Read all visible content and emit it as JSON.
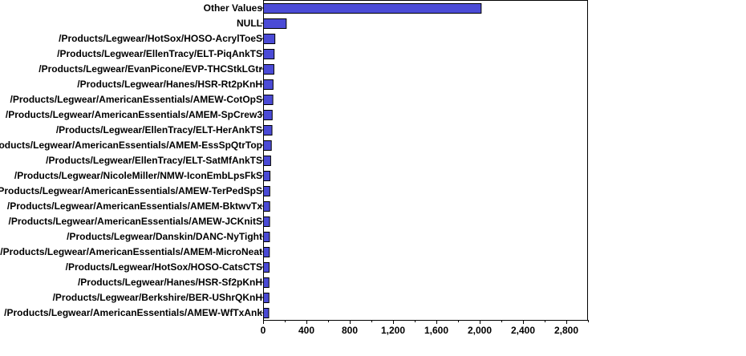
{
  "chart_data": {
    "type": "bar",
    "orientation": "horizontal",
    "categories": [
      "Other Values",
      "NULL",
      "/Products/Legwear/HotSox/HOSO-AcrylToeS",
      "/Products/Legwear/EllenTracy/ELT-PiqAnkTS",
      "/Products/Legwear/EvanPicone/EVP-THCStkLGtr",
      "/Products/Legwear/Hanes/HSR-Rt2pKnH",
      "/Products/Legwear/AmericanEssentials/AMEW-CotOpS",
      "/Products/Legwear/AmericanEssentials/AMEM-SpCrew3",
      "/Products/Legwear/EllenTracy/ELT-HerAnkTS",
      "/Products/Legwear/AmericanEssentials/AMEM-EssSpQtrTop",
      "/Products/Legwear/EllenTracy/ELT-SatMfAnkTS",
      "/Products/Legwear/NicoleMiller/NMW-IconEmbLpsFkS",
      "/Products/Legwear/AmericanEssentials/AMEW-TerPedSpS",
      "/Products/Legwear/AmericanEssentials/AMEM-BktwvTx",
      "/Products/Legwear/AmericanEssentials/AMEW-JCKnitS",
      "/Products/Legwear/Danskin/DANC-NyTight",
      "/Products/Legwear/AmericanEssentials/AMEM-MicroNeat",
      "/Products/Legwear/HotSox/HOSO-CatsCTS",
      "/Products/Legwear/Hanes/HSR-Sf2pKnH",
      "/Products/Legwear/Berkshire/BER-UShrQKnH",
      "/Products/Legwear/AmericanEssentials/AMEW-WfTxAnk"
    ],
    "values": [
      2010,
      210,
      105,
      98,
      96,
      88,
      86,
      80,
      78,
      72,
      66,
      60,
      58,
      57,
      56,
      55,
      54,
      52,
      50,
      50,
      48
    ],
    "xlim": [
      0,
      3000
    ],
    "xticks": [
      0,
      400,
      800,
      1200,
      1600,
      2000,
      2400,
      2800
    ],
    "xtick_labels": [
      "0",
      "400",
      "800",
      "1,200",
      "1,600",
      "2,000",
      "2,400",
      "2,800"
    ],
    "title": "",
    "xlabel": "",
    "ylabel": "",
    "grid": false,
    "bar_color": "#4b4bd6",
    "bar_edge_color": "#000000"
  }
}
